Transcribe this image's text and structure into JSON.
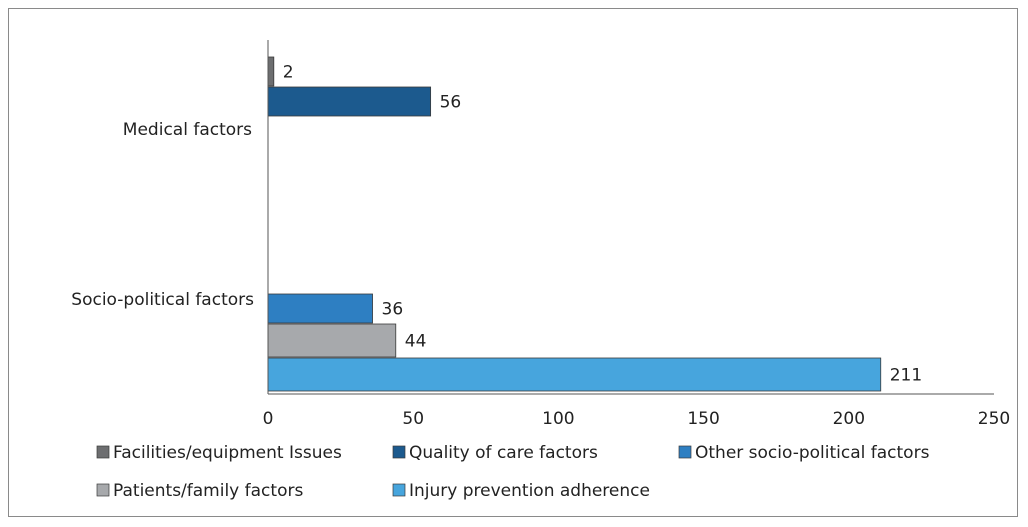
{
  "chart_data": {
    "type": "bar",
    "orientation": "horizontal",
    "xlim": [
      0,
      250
    ],
    "xticks": [
      0,
      50,
      100,
      150,
      200,
      250
    ],
    "grid": false,
    "legend_position": "bottom",
    "groups": [
      {
        "label": "Medical factors",
        "bars": [
          {
            "series": "Facilities/equipment Issues",
            "value": 2
          },
          {
            "series": "Quality of care factors",
            "value": 56
          }
        ]
      },
      {
        "label": "Socio-political factors",
        "bars": [
          {
            "series": "Other socio-political factors",
            "value": 36
          },
          {
            "series": "Patients/family factors",
            "value": 44
          },
          {
            "series": "Injury prevention adherence",
            "value": 211
          }
        ]
      }
    ],
    "series": [
      {
        "name": "Facilities/equipment Issues",
        "color": "#6d6e70"
      },
      {
        "name": "Quality of care factors",
        "color": "#1c5a8e"
      },
      {
        "name": "Other socio-political factors",
        "color": "#2e7fc2"
      },
      {
        "name": "Patients/family factors",
        "color": "#a7a9ac"
      },
      {
        "name": "Injury prevention adherence",
        "color": "#47a5dd"
      }
    ]
  }
}
